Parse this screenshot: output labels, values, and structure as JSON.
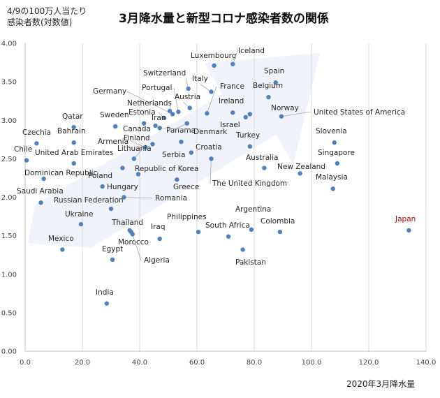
{
  "chart_data": {
    "type": "scatter",
    "title": "3月降水量と新型コロナ感染者数の関係",
    "ylabel": "4/9の100万人当たり\n感染者数(対数値)",
    "xlabel": "2020年3月降水量",
    "xlim": [
      0,
      140
    ],
    "ylim": [
      0,
      4
    ],
    "xticks": [
      "0.0",
      "20.0",
      "40.0",
      "60.0",
      "80.0",
      "100.0",
      "120.0",
      "140.0"
    ],
    "yticks": [
      "0.00",
      "0.50",
      "1.00",
      "1.50",
      "2.00",
      "2.50",
      "3.00",
      "3.50",
      "4.00"
    ],
    "grid": "vertical",
    "trend_arrow": true,
    "highlight": {
      "name": "Japan",
      "color": "#c00000"
    },
    "points": [
      {
        "name": "Luxembourg",
        "x": 66,
        "y": 3.71
      },
      {
        "name": "Iceland",
        "x": 72.5,
        "y": 3.73
      },
      {
        "name": "Spain",
        "x": 87.5,
        "y": 3.49
      },
      {
        "name": "Switzerland",
        "x": 57,
        "y": 3.41
      },
      {
        "name": "Italy",
        "x": 65,
        "y": 3.37
      },
      {
        "name": "France",
        "x": 63.5,
        "y": 3.09
      },
      {
        "name": "Belgium",
        "x": 85,
        "y": 3.3
      },
      {
        "name": "Portugal",
        "x": 53.5,
        "y": 3.11
      },
      {
        "name": "Austria",
        "x": 57.5,
        "y": 3.16
      },
      {
        "name": "Germany",
        "x": 51.5,
        "y": 3.08
      },
      {
        "name": "Ireland",
        "x": 72.5,
        "y": 3.1
      },
      {
        "name": "Norway",
        "x": 78.5,
        "y": 3.08
      },
      {
        "name": "United States of America",
        "x": 89.5,
        "y": 3.05
      },
      {
        "name": "Netherlands",
        "x": 50.5,
        "y": 3.12
      },
      {
        "name": "Estonia",
        "x": 48.5,
        "y": 3.03
      },
      {
        "name": "Israel",
        "x": 77,
        "y": 3.04
      },
      {
        "name": "Iran",
        "x": 45.5,
        "y": 2.93
      },
      {
        "name": "Qatar",
        "x": 17,
        "y": 2.91
      },
      {
        "name": "Sweden",
        "x": 31.5,
        "y": 2.92
      },
      {
        "name": "Canada",
        "x": 41.5,
        "y": 2.96
      },
      {
        "name": "Panama",
        "x": 56.5,
        "y": 2.96
      },
      {
        "name": "Denmark",
        "x": 47,
        "y": 2.9
      },
      {
        "name": "Bahrain",
        "x": 17,
        "y": 2.71
      },
      {
        "name": "Czechia",
        "x": 4,
        "y": 2.7
      },
      {
        "name": "Finland",
        "x": 44.5,
        "y": 2.69
      },
      {
        "name": "Turkey",
        "x": 78.5,
        "y": 2.66
      },
      {
        "name": "Slovenia",
        "x": 108,
        "y": 2.71
      },
      {
        "name": "Chile",
        "x": 0.5,
        "y": 2.48
      },
      {
        "name": "United Arab Emirates",
        "x": 17,
        "y": 2.44
      },
      {
        "name": "Armenia",
        "x": 42,
        "y": 2.65
      },
      {
        "name": "Lithuania",
        "x": 38,
        "y": 2.5
      },
      {
        "name": "Croatia",
        "x": 54.5,
        "y": 2.72
      },
      {
        "name": "Serbia",
        "x": 58,
        "y": 2.58
      },
      {
        "name": "Australia",
        "x": 83.5,
        "y": 2.38
      },
      {
        "name": "Singapore",
        "x": 109,
        "y": 2.44
      },
      {
        "name": "New Zealand",
        "x": 96,
        "y": 2.31
      },
      {
        "name": "Dominican Republic",
        "x": 6.5,
        "y": 2.24
      },
      {
        "name": "Poland",
        "x": 34,
        "y": 2.38
      },
      {
        "name": "Republic of Korea",
        "x": 39.5,
        "y": 2.3
      },
      {
        "name": "The United Kingdom",
        "x": 65,
        "y": 2.5
      },
      {
        "name": "Greece",
        "x": 53,
        "y": 2.23
      },
      {
        "name": "Malaysia",
        "x": 107.5,
        "y": 2.11
      },
      {
        "name": "Saudi Arabia",
        "x": 5.5,
        "y": 1.93
      },
      {
        "name": "Hungary",
        "x": 27,
        "y": 2.14
      },
      {
        "name": "Romania",
        "x": 34.5,
        "y": 2.0
      },
      {
        "name": "Russian Federation",
        "x": 30,
        "y": 1.85
      },
      {
        "name": "Ukraine",
        "x": 19.5,
        "y": 1.65
      },
      {
        "name": "Thailand",
        "x": 36.5,
        "y": 1.57
      },
      {
        "name": "Philippines",
        "x": 60.5,
        "y": 1.55
      },
      {
        "name": "Argentina",
        "x": 79,
        "y": 1.58
      },
      {
        "name": "Colombia",
        "x": 89,
        "y": 1.55
      },
      {
        "name": "South Africa",
        "x": 71,
        "y": 1.49
      },
      {
        "name": "Japan",
        "x": 134,
        "y": 1.57
      },
      {
        "name": "Iraq",
        "x": 47,
        "y": 1.46
      },
      {
        "name": "Morocco",
        "x": 37,
        "y": 1.55
      },
      {
        "name": "Mexico",
        "x": 13,
        "y": 1.32
      },
      {
        "name": "Pakistan",
        "x": 76,
        "y": 1.32
      },
      {
        "name": "Egypt",
        "x": 30.5,
        "y": 1.19
      },
      {
        "name": "Algeria",
        "x": 37.5,
        "y": 1.52
      },
      {
        "name": "India",
        "x": 28.5,
        "y": 0.62
      }
    ]
  }
}
